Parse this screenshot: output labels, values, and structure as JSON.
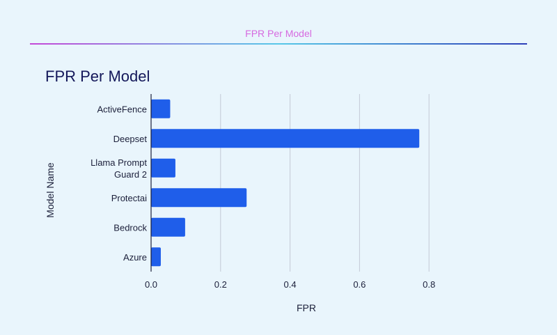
{
  "header": {
    "title": "FPR Per Model"
  },
  "chart_data": {
    "type": "bar",
    "orientation": "horizontal",
    "title": "FPR Per Model",
    "xlabel": "FPR",
    "ylabel": "Model Name",
    "categories": [
      "ActiveFence",
      "Deepset",
      "Llama Prompt Guard 2",
      "Protectai",
      "Bedrock",
      "Azure"
    ],
    "category_lines": [
      [
        "ActiveFence"
      ],
      [
        "Deepset"
      ],
      [
        "Llama Prompt",
        "Guard 2"
      ],
      [
        "Protectai"
      ],
      [
        "Bedrock"
      ],
      [
        "Azure"
      ]
    ],
    "values": [
      0.055,
      0.772,
      0.07,
      0.275,
      0.098,
      0.028
    ],
    "xlim": [
      0,
      0.97
    ],
    "xticks": [
      0,
      0.2,
      0.4,
      0.6,
      0.8
    ],
    "xtick_labels": [
      "0.0",
      "0.2",
      "0.4",
      "0.6",
      "0.8"
    ],
    "grid": "vertical",
    "colors": {
      "bar": "#1f5eea",
      "grid": "#c4c9d6",
      "axis": "#1b1f3a",
      "text": "#1b1f3a",
      "title": "#14185a"
    }
  }
}
